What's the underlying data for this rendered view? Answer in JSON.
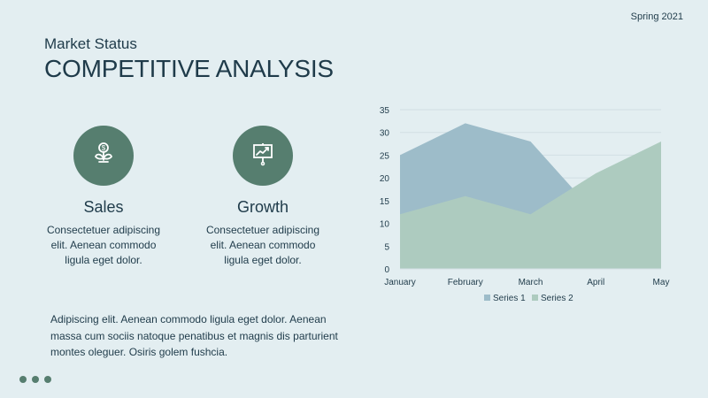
{
  "slide": {
    "date": "Spring 2021",
    "subtitle": "Market Status",
    "title": "COMPETITIVE ANALYSIS",
    "paragraph": "Adipiscing elit. Aenean commodo ligula eget dolor. Aenean massa cum sociis natoque penatibus et magnis dis parturient montes oleguer. Osiris golem fushcia."
  },
  "features": [
    {
      "title": "Sales",
      "text": "Consectetuer adipiscing elit. Aenean commodo ligula eget dolor.",
      "icon": "money-plant-icon"
    },
    {
      "title": "Growth",
      "text": "Consectetuer adipiscing elit. Aenean commodo ligula eget dolor.",
      "icon": "presentation-growth-icon"
    }
  ],
  "chart_data": {
    "type": "area",
    "categories": [
      "January",
      "February",
      "March",
      "April",
      "May"
    ],
    "series": [
      {
        "name": "Series 1",
        "values": [
          25,
          32,
          28,
          12,
          15
        ],
        "color": "#9dbcc9"
      },
      {
        "name": "Series 2",
        "values": [
          12,
          16,
          12,
          21,
          28
        ],
        "color": "#adcbbf"
      }
    ],
    "ylim": [
      0,
      35
    ],
    "yticks": [
      0,
      5,
      10,
      15,
      20,
      25,
      30,
      35
    ],
    "grid": true,
    "legend": "bottom"
  },
  "colors": {
    "background": "#e3eef1",
    "text": "#1f3b4a",
    "accent": "#567e6f",
    "grid": "#d2dfe4"
  }
}
